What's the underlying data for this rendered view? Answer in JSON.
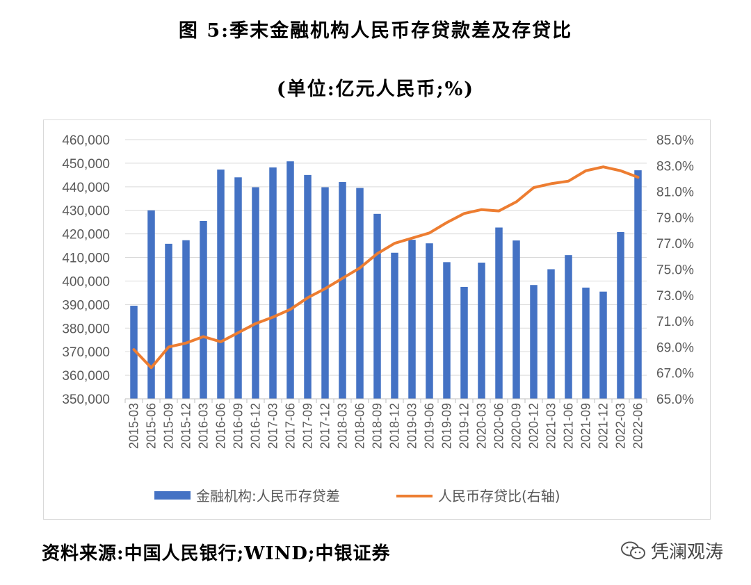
{
  "title": "图 5:季末金融机构人民币存贷款差及存贷比",
  "subtitle": "(单位:亿元人民币;%)",
  "source": "资料来源:中国人民银行;WIND;中银证券",
  "watermark": {
    "text": "凭澜观涛",
    "icon": "wechat-icon"
  },
  "colors": {
    "bar": "#4472C4",
    "line": "#ED7D31",
    "grid": "#d9d9d9",
    "axis_text": "#595959"
  },
  "chart_data": {
    "type": "bar+line",
    "categories": [
      "2015-03",
      "2015-06",
      "2015-09",
      "2015-12",
      "2016-03",
      "2016-06",
      "2016-09",
      "2016-12",
      "2017-03",
      "2017-06",
      "2017-09",
      "2017-12",
      "2018-03",
      "2018-06",
      "2018-09",
      "2018-12",
      "2019-03",
      "2019-06",
      "2019-09",
      "2019-12",
      "2020-03",
      "2020-06",
      "2020-09",
      "2020-12",
      "2021-03",
      "2021-06",
      "2021-09",
      "2021-12",
      "2022-03",
      "2022-06"
    ],
    "series": [
      {
        "name": "金融机构:人民币存贷差",
        "type": "bar",
        "axis": "left",
        "values": [
          389500,
          430000,
          415800,
          417300,
          425500,
          447300,
          444000,
          439800,
          448200,
          450800,
          445000,
          439800,
          442000,
          439500,
          428500,
          412000,
          417500,
          416000,
          408000,
          397500,
          407800,
          422700,
          417200,
          398300,
          405000,
          411000,
          397200,
          395500,
          420800,
          447000
        ]
      },
      {
        "name": "人民币存贷比(右轴)",
        "type": "line",
        "axis": "right",
        "values": [
          68.8,
          67.4,
          69.0,
          69.3,
          69.8,
          69.4,
          70.1,
          70.8,
          71.3,
          71.9,
          72.8,
          73.5,
          74.3,
          75.1,
          76.2,
          77.0,
          77.4,
          77.8,
          78.6,
          79.3,
          79.6,
          79.5,
          80.2,
          81.3,
          81.6,
          81.8,
          82.6,
          82.9,
          82.6,
          82.1
        ]
      }
    ],
    "y_left": {
      "min": 350000,
      "max": 460000,
      "step": 10000,
      "ticks": [
        "350,000",
        "360,000",
        "370,000",
        "380,000",
        "390,000",
        "400,000",
        "410,000",
        "420,000",
        "430,000",
        "440,000",
        "450,000",
        "460,000"
      ]
    },
    "y_right": {
      "min": 65.0,
      "max": 85.0,
      "step": 2.0,
      "ticks": [
        "65.0%",
        "67.0%",
        "69.0%",
        "71.0%",
        "73.0%",
        "75.0%",
        "77.0%",
        "79.0%",
        "81.0%",
        "83.0%",
        "85.0%"
      ]
    },
    "grid": true,
    "legend_position": "bottom"
  }
}
